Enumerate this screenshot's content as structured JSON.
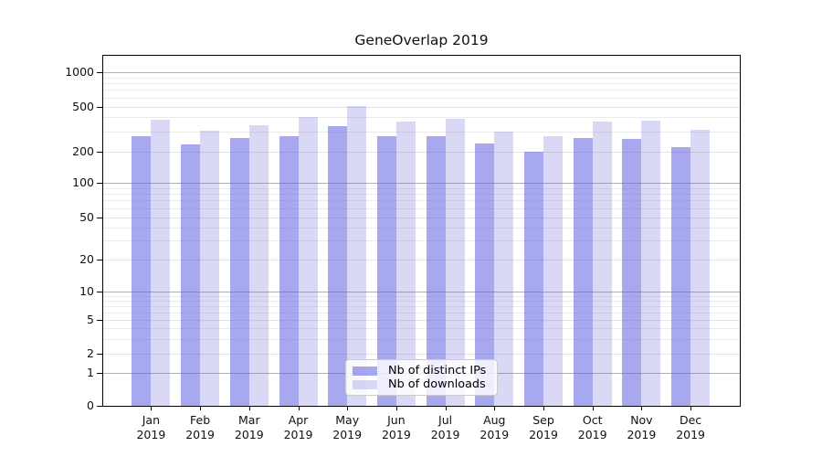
{
  "chart_data": {
    "type": "bar",
    "title": "GeneOverlap 2019",
    "categories": [
      "Jan",
      "Feb",
      "Mar",
      "Apr",
      "May",
      "Jun",
      "Jul",
      "Aug",
      "Sep",
      "Oct",
      "Nov",
      "Dec"
    ],
    "category_year": "2019",
    "series": [
      {
        "name": "Nb of distinct IPs",
        "color": "#a8a8ee",
        "values": [
          272,
          229,
          262,
          271,
          333,
          272,
          272,
          236,
          197,
          262,
          257,
          216
        ]
      },
      {
        "name": "Nb of downloads",
        "color": "#d9d9f6",
        "values": [
          381,
          303,
          343,
          401,
          507,
          370,
          391,
          301,
          274,
          367,
          374,
          309
        ]
      }
    ],
    "y_axis": {
      "scale": "log-1-2-5 with 0 baseline",
      "ticks": [
        0,
        1,
        2,
        5,
        10,
        20,
        50,
        100,
        200,
        500,
        1000
      ],
      "tick_labels": [
        "0",
        "1",
        "2",
        "5",
        "10",
        "20",
        "50",
        "100",
        "200",
        "500",
        "1000"
      ]
    },
    "x_axis": {
      "tick_label_format": "Month over 2019"
    },
    "legend": {
      "position": "lower-center-inside",
      "entries": [
        "Nb of distinct IPs",
        "Nb of downloads"
      ]
    },
    "grid": {
      "major_color": "#b0b0b0",
      "minor_color": "#ebebeb",
      "grid_on": true
    },
    "colors": {
      "axis": "#000000",
      "text": "#111111",
      "legend_border": "#cccccc"
    }
  }
}
